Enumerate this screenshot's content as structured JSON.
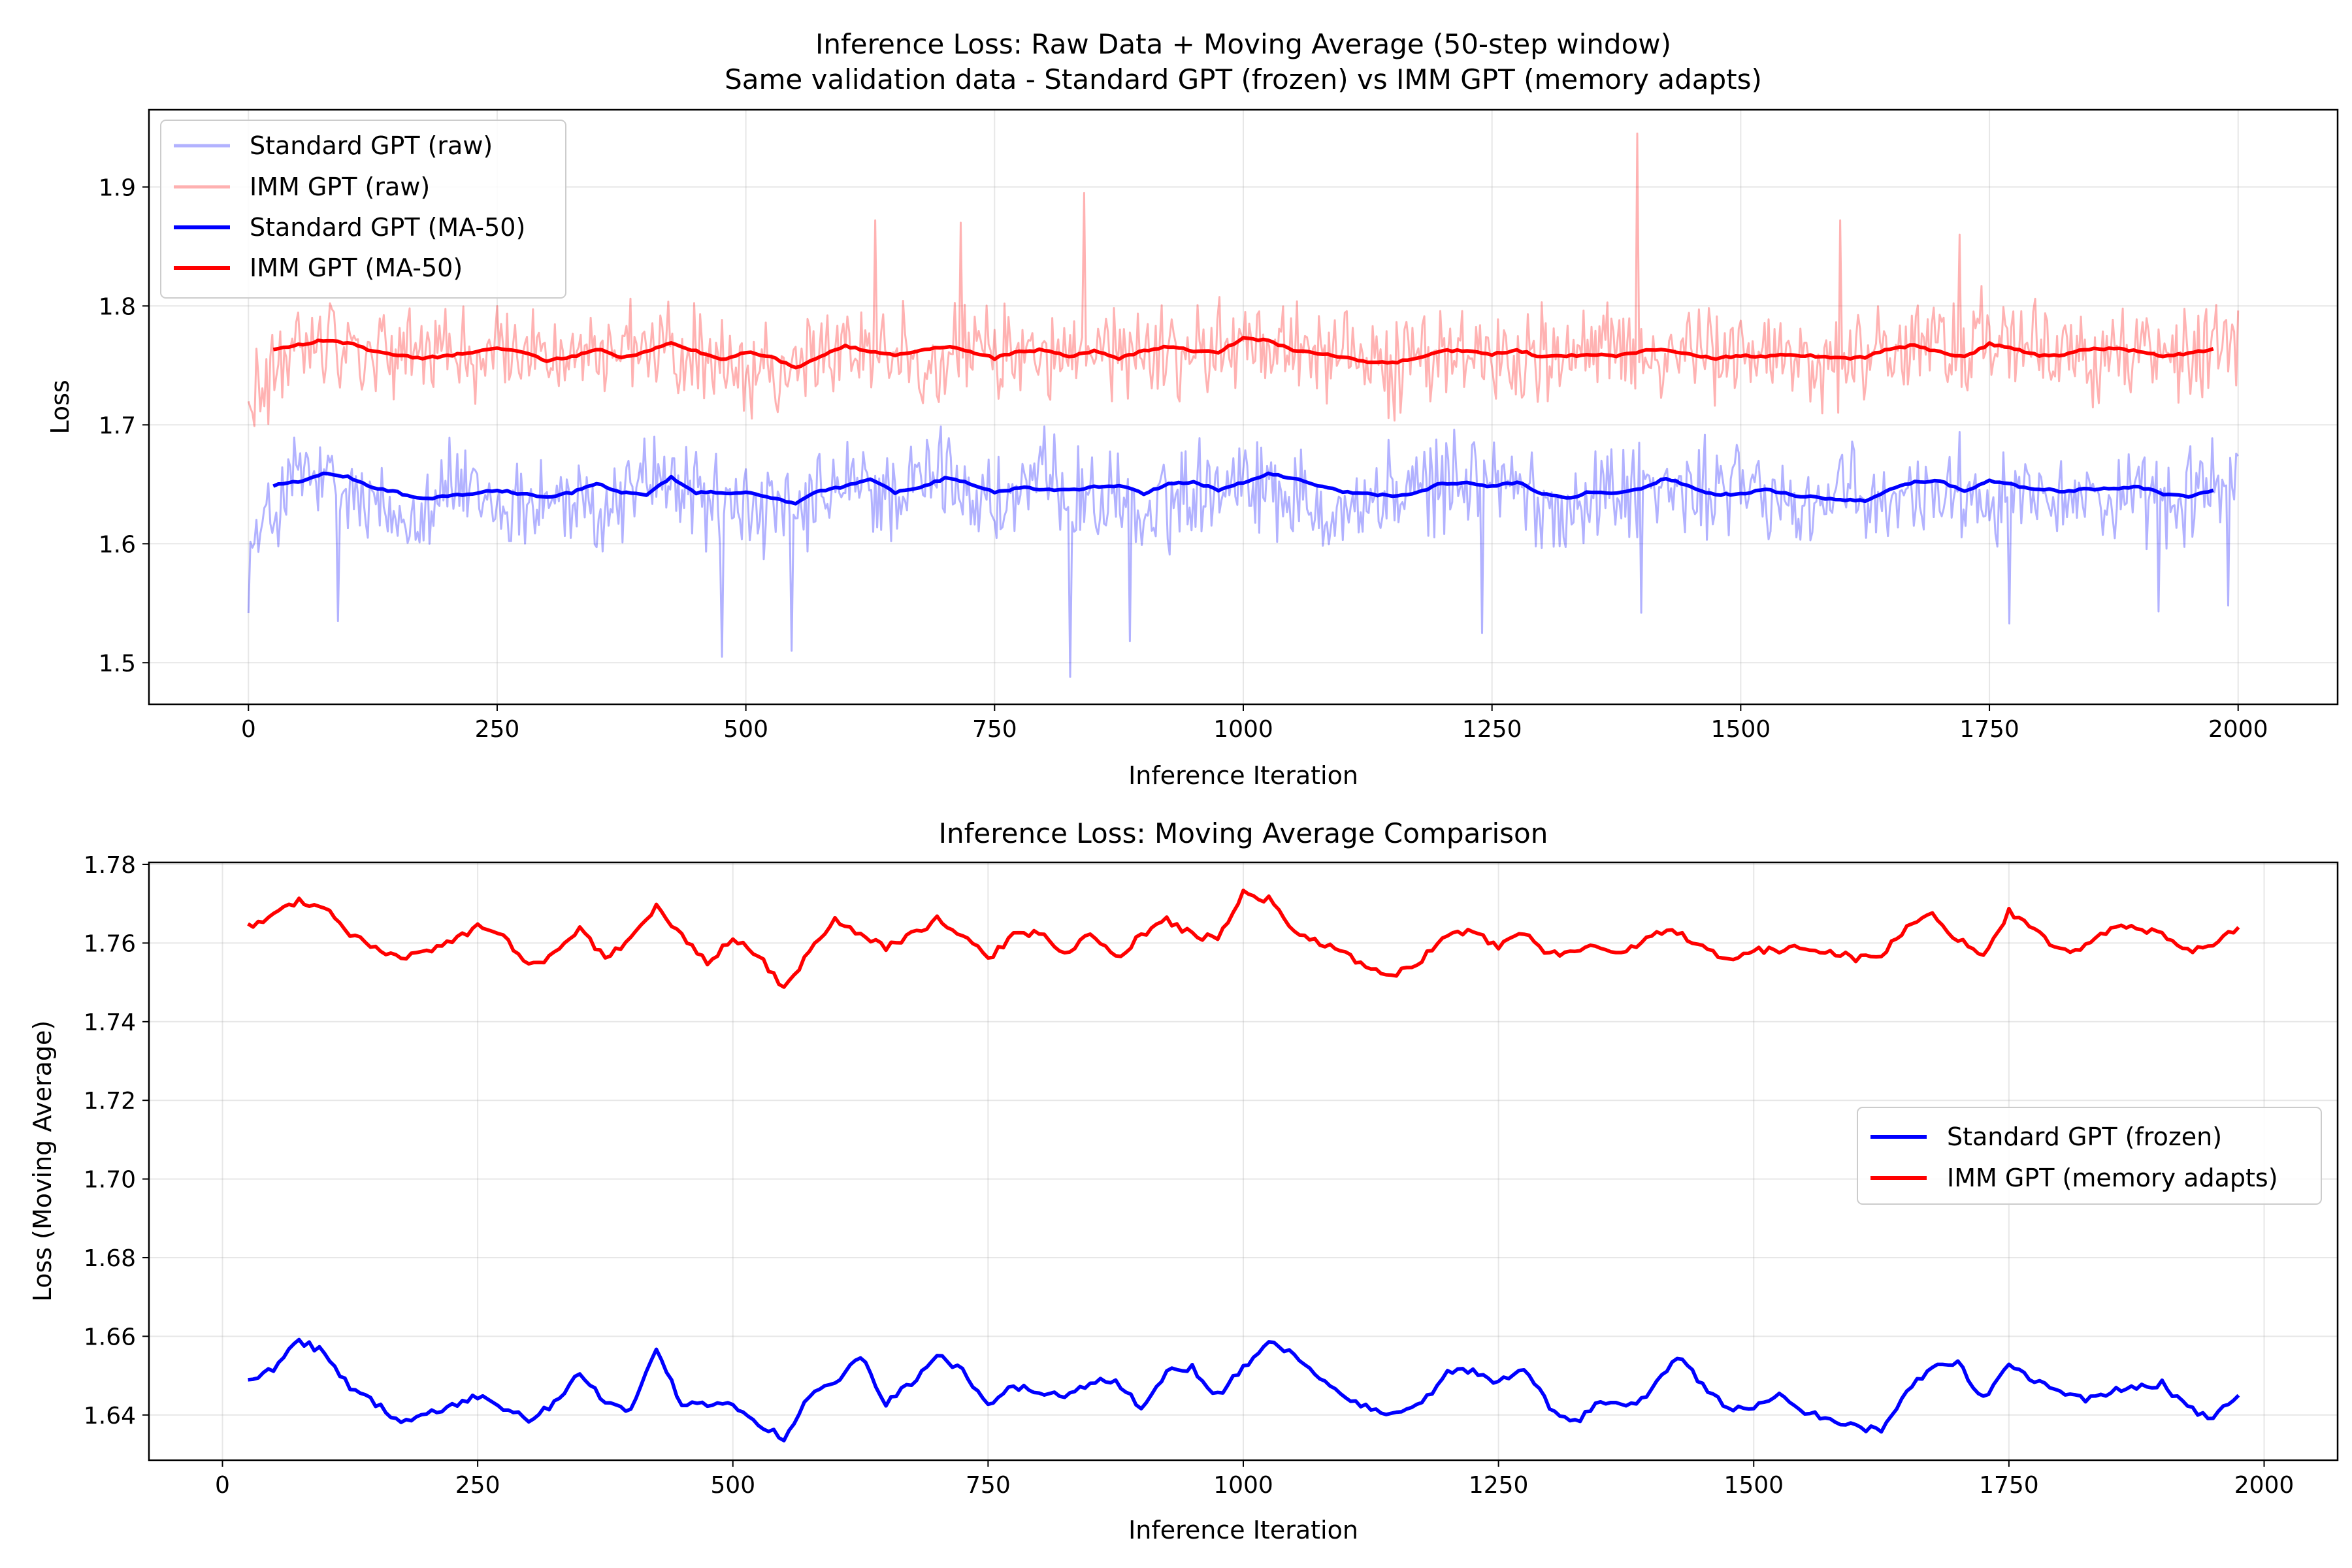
{
  "chart_data": [
    {
      "type": "line",
      "title": "Inference Loss: Raw Data + Moving Average (50-step window)",
      "subtitle": "Same validation data - Standard GPT (frozen) vs IMM GPT (memory adapts)",
      "xlabel": "Inference Iteration",
      "ylabel": "Loss",
      "xlim": [
        -100,
        2100
      ],
      "ylim": [
        1.465,
        1.965
      ],
      "xticks": [
        0,
        250,
        500,
        750,
        1000,
        1250,
        1500,
        1750,
        2000
      ],
      "yticks": [
        1.5,
        1.6,
        1.7,
        1.8,
        1.9
      ],
      "xtick_labels": [
        "0",
        "250",
        "500",
        "750",
        "1000",
        "1250",
        "1500",
        "1750",
        "2000"
      ],
      "ytick_labels": [
        "1.5",
        "1.6",
        "1.7",
        "1.8",
        "1.9"
      ],
      "grid": true,
      "legend_position": "top-left",
      "series": [
        {
          "name": "Standard GPT (raw)",
          "color": "#0000ff",
          "opacity": 0.3,
          "x": [
            0,
            50,
            100,
            150,
            200,
            250,
            300,
            350,
            400,
            450,
            500,
            550,
            600,
            650,
            700,
            750,
            800,
            850,
            900,
            950,
            1000,
            1050,
            1100,
            1150,
            1200,
            1250,
            1300,
            1350,
            1400,
            1450,
            1500,
            1550,
            1600,
            1650,
            1700,
            1750,
            1800,
            1850,
            1900,
            1950,
            2000
          ],
          "y": [
            1.59,
            1.66,
            1.64,
            1.62,
            1.65,
            1.63,
            1.64,
            1.62,
            1.66,
            1.64,
            1.63,
            1.62,
            1.65,
            1.64,
            1.66,
            1.63,
            1.65,
            1.64,
            1.62,
            1.65,
            1.66,
            1.64,
            1.63,
            1.64,
            1.65,
            1.66,
            1.63,
            1.64,
            1.65,
            1.64,
            1.65,
            1.63,
            1.64,
            1.63,
            1.65,
            1.64,
            1.65,
            1.64,
            1.63,
            1.64,
            1.66
          ],
          "noise": 0.05,
          "spikes_low": [
            [
              90,
              1.535
            ],
            [
              475,
              1.505
            ],
            [
              545,
              1.51
            ],
            [
              825,
              1.488
            ],
            [
              885,
              1.518
            ],
            [
              1240,
              1.525
            ],
            [
              1400,
              1.542
            ],
            [
              1770,
              1.533
            ],
            [
              1920,
              1.543
            ],
            [
              1990,
              1.548
            ]
          ]
        },
        {
          "name": "IMM GPT (raw)",
          "color": "#ff0000",
          "opacity": 0.3,
          "x": [
            0,
            50,
            100,
            150,
            200,
            250,
            300,
            350,
            400,
            450,
            500,
            550,
            600,
            650,
            700,
            750,
            800,
            850,
            900,
            950,
            1000,
            1050,
            1100,
            1150,
            1200,
            1250,
            1300,
            1350,
            1400,
            1450,
            1500,
            1550,
            1600,
            1650,
            1700,
            1750,
            1800,
            1850,
            1900,
            1950,
            2000
          ],
          "y": [
            1.71,
            1.77,
            1.77,
            1.76,
            1.76,
            1.76,
            1.76,
            1.76,
            1.76,
            1.76,
            1.75,
            1.75,
            1.77,
            1.76,
            1.76,
            1.76,
            1.76,
            1.76,
            1.76,
            1.76,
            1.77,
            1.77,
            1.76,
            1.75,
            1.76,
            1.76,
            1.76,
            1.76,
            1.76,
            1.76,
            1.76,
            1.76,
            1.75,
            1.76,
            1.77,
            1.77,
            1.76,
            1.76,
            1.76,
            1.76,
            1.77
          ],
          "noise": 0.05,
          "spikes_high": [
            [
              630,
              1.872
            ],
            [
              715,
              1.87
            ],
            [
              840,
              1.895
            ],
            [
              1395,
              1.945
            ],
            [
              1600,
              1.872
            ],
            [
              1720,
              1.86
            ]
          ]
        },
        {
          "name": "Standard GPT (MA-50)",
          "color": "#0000ff",
          "opacity": 1,
          "x": [
            25,
            50,
            75,
            100,
            125,
            150,
            175,
            200,
            225,
            250,
            275,
            300,
            325,
            350,
            375,
            400,
            425,
            450,
            475,
            500,
            525,
            550,
            575,
            600,
            625,
            650,
            675,
            700,
            725,
            750,
            775,
            800,
            825,
            850,
            875,
            900,
            925,
            950,
            975,
            1000,
            1025,
            1050,
            1075,
            1100,
            1125,
            1150,
            1175,
            1200,
            1225,
            1250,
            1275,
            1300,
            1325,
            1350,
            1375,
            1400,
            1425,
            1450,
            1475,
            1500,
            1525,
            1550,
            1575,
            1600,
            1625,
            1650,
            1675,
            1700,
            1725,
            1750,
            1775,
            1800,
            1825,
            1850,
            1875,
            1900,
            1925,
            1950,
            1975
          ],
          "y": [
            1.649,
            1.652,
            1.659,
            1.656,
            1.647,
            1.643,
            1.638,
            1.64,
            1.642,
            1.645,
            1.642,
            1.639,
            1.643,
            1.651,
            1.643,
            1.641,
            1.656,
            1.643,
            1.643,
            1.643,
            1.638,
            1.634,
            1.645,
            1.648,
            1.655,
            1.643,
            1.648,
            1.655,
            1.651,
            1.643,
            1.647,
            1.646,
            1.645,
            1.648,
            1.649,
            1.642,
            1.651,
            1.652,
            1.645,
            1.652,
            1.659,
            1.655,
            1.649,
            1.644,
            1.642,
            1.64,
            1.643,
            1.651,
            1.651,
            1.648,
            1.652,
            1.642,
            1.638,
            1.644,
            1.642,
            1.646,
            1.655,
            1.648,
            1.641,
            1.642,
            1.646,
            1.641,
            1.639,
            1.637,
            1.636,
            1.646,
            1.652,
            1.653,
            1.644,
            1.653,
            1.649,
            1.646,
            1.644,
            1.646,
            1.647,
            1.648,
            1.642,
            1.639,
            1.645
          ]
        },
        {
          "name": "IMM GPT (MA-50)",
          "color": "#ff0000",
          "opacity": 1,
          "x": [
            25,
            50,
            75,
            100,
            125,
            150,
            175,
            200,
            225,
            250,
            275,
            300,
            325,
            350,
            375,
            400,
            425,
            450,
            475,
            500,
            525,
            550,
            575,
            600,
            625,
            650,
            675,
            700,
            725,
            750,
            775,
            800,
            825,
            850,
            875,
            900,
            925,
            950,
            975,
            1000,
            1025,
            1050,
            1075,
            1100,
            1125,
            1150,
            1175,
            1200,
            1225,
            1250,
            1275,
            1300,
            1325,
            1350,
            1375,
            1400,
            1425,
            1450,
            1475,
            1500,
            1525,
            1550,
            1575,
            1600,
            1625,
            1650,
            1675,
            1700,
            1725,
            1750,
            1775,
            1800,
            1825,
            1850,
            1875,
            1900,
            1925,
            1950,
            1975
          ],
          "y": [
            1.764,
            1.767,
            1.771,
            1.769,
            1.762,
            1.759,
            1.756,
            1.758,
            1.761,
            1.764,
            1.762,
            1.754,
            1.757,
            1.764,
            1.756,
            1.761,
            1.769,
            1.762,
            1.755,
            1.761,
            1.757,
            1.748,
            1.758,
            1.766,
            1.762,
            1.759,
            1.762,
            1.766,
            1.762,
            1.756,
            1.762,
            1.763,
            1.757,
            1.762,
            1.756,
            1.762,
            1.766,
            1.762,
            1.761,
            1.773,
            1.771,
            1.763,
            1.76,
            1.757,
            1.753,
            1.752,
            1.756,
            1.762,
            1.763,
            1.759,
            1.763,
            1.757,
            1.758,
            1.759,
            1.758,
            1.762,
            1.763,
            1.759,
            1.756,
            1.758,
            1.758,
            1.759,
            1.758,
            1.756,
            1.757,
            1.764,
            1.767,
            1.761,
            1.757,
            1.768,
            1.764,
            1.758,
            1.759,
            1.764,
            1.764,
            1.762,
            1.758,
            1.76,
            1.764
          ]
        }
      ]
    },
    {
      "type": "line",
      "title": "Inference Loss: Moving Average Comparison",
      "xlabel": "Inference Iteration",
      "ylabel": "Loss (Moving Average)",
      "xlim": [
        -72,
        2072
      ],
      "ylim": [
        1.6285,
        1.7805
      ],
      "xticks": [
        0,
        250,
        500,
        750,
        1000,
        1250,
        1500,
        1750,
        2000
      ],
      "yticks": [
        1.64,
        1.66,
        1.68,
        1.7,
        1.72,
        1.74,
        1.76,
        1.78
      ],
      "xtick_labels": [
        "0",
        "250",
        "500",
        "750",
        "1000",
        "1250",
        "1500",
        "1750",
        "2000"
      ],
      "ytick_labels": [
        "1.64",
        "1.66",
        "1.68",
        "1.70",
        "1.72",
        "1.74",
        "1.76",
        "1.78"
      ],
      "grid": true,
      "legend_position": "center-right",
      "series": [
        {
          "name": "Standard GPT (frozen)",
          "color": "#0000ff",
          "x": [
            25,
            50,
            75,
            100,
            125,
            150,
            175,
            200,
            225,
            250,
            275,
            300,
            325,
            350,
            375,
            400,
            425,
            450,
            475,
            500,
            525,
            550,
            575,
            600,
            625,
            650,
            675,
            700,
            725,
            750,
            775,
            800,
            825,
            850,
            875,
            900,
            925,
            950,
            975,
            1000,
            1025,
            1050,
            1075,
            1100,
            1125,
            1150,
            1175,
            1200,
            1225,
            1250,
            1275,
            1300,
            1325,
            1350,
            1375,
            1400,
            1425,
            1450,
            1475,
            1500,
            1525,
            1550,
            1575,
            1600,
            1625,
            1650,
            1675,
            1700,
            1725,
            1750,
            1775,
            1800,
            1825,
            1850,
            1875,
            1900,
            1925,
            1950,
            1975
          ],
          "y": [
            1.649,
            1.652,
            1.659,
            1.656,
            1.647,
            1.643,
            1.638,
            1.64,
            1.642,
            1.645,
            1.642,
            1.639,
            1.643,
            1.651,
            1.643,
            1.641,
            1.656,
            1.643,
            1.643,
            1.643,
            1.638,
            1.634,
            1.645,
            1.648,
            1.655,
            1.643,
            1.648,
            1.655,
            1.651,
            1.643,
            1.647,
            1.646,
            1.645,
            1.648,
            1.649,
            1.642,
            1.651,
            1.652,
            1.645,
            1.652,
            1.659,
            1.655,
            1.649,
            1.644,
            1.642,
            1.64,
            1.643,
            1.651,
            1.651,
            1.648,
            1.652,
            1.642,
            1.638,
            1.644,
            1.642,
            1.646,
            1.655,
            1.648,
            1.641,
            1.642,
            1.646,
            1.641,
            1.639,
            1.637,
            1.636,
            1.646,
            1.652,
            1.653,
            1.644,
            1.653,
            1.649,
            1.646,
            1.644,
            1.646,
            1.647,
            1.648,
            1.642,
            1.639,
            1.645
          ]
        },
        {
          "name": "IMM GPT (memory adapts)",
          "color": "#ff0000",
          "x": [
            25,
            50,
            75,
            100,
            125,
            150,
            175,
            200,
            225,
            250,
            275,
            300,
            325,
            350,
            375,
            400,
            425,
            450,
            475,
            500,
            525,
            550,
            575,
            600,
            625,
            650,
            675,
            700,
            725,
            750,
            775,
            800,
            825,
            850,
            875,
            900,
            925,
            950,
            975,
            1000,
            1025,
            1050,
            1075,
            1100,
            1125,
            1150,
            1175,
            1200,
            1225,
            1250,
            1275,
            1300,
            1325,
            1350,
            1375,
            1400,
            1425,
            1450,
            1475,
            1500,
            1525,
            1550,
            1575,
            1600,
            1625,
            1650,
            1675,
            1700,
            1725,
            1750,
            1775,
            1800,
            1825,
            1850,
            1875,
            1900,
            1925,
            1950,
            1975
          ],
          "y": [
            1.764,
            1.767,
            1.771,
            1.769,
            1.762,
            1.759,
            1.756,
            1.758,
            1.761,
            1.764,
            1.762,
            1.754,
            1.757,
            1.764,
            1.756,
            1.761,
            1.769,
            1.762,
            1.755,
            1.761,
            1.757,
            1.748,
            1.758,
            1.766,
            1.762,
            1.759,
            1.762,
            1.766,
            1.762,
            1.756,
            1.762,
            1.763,
            1.757,
            1.762,
            1.756,
            1.762,
            1.766,
            1.762,
            1.761,
            1.773,
            1.771,
            1.763,
            1.76,
            1.757,
            1.753,
            1.752,
            1.756,
            1.762,
            1.763,
            1.759,
            1.763,
            1.757,
            1.758,
            1.759,
            1.758,
            1.762,
            1.763,
            1.759,
            1.756,
            1.758,
            1.758,
            1.759,
            1.758,
            1.756,
            1.757,
            1.764,
            1.767,
            1.761,
            1.757,
            1.768,
            1.764,
            1.758,
            1.759,
            1.764,
            1.764,
            1.762,
            1.758,
            1.76,
            1.764
          ]
        }
      ]
    }
  ]
}
